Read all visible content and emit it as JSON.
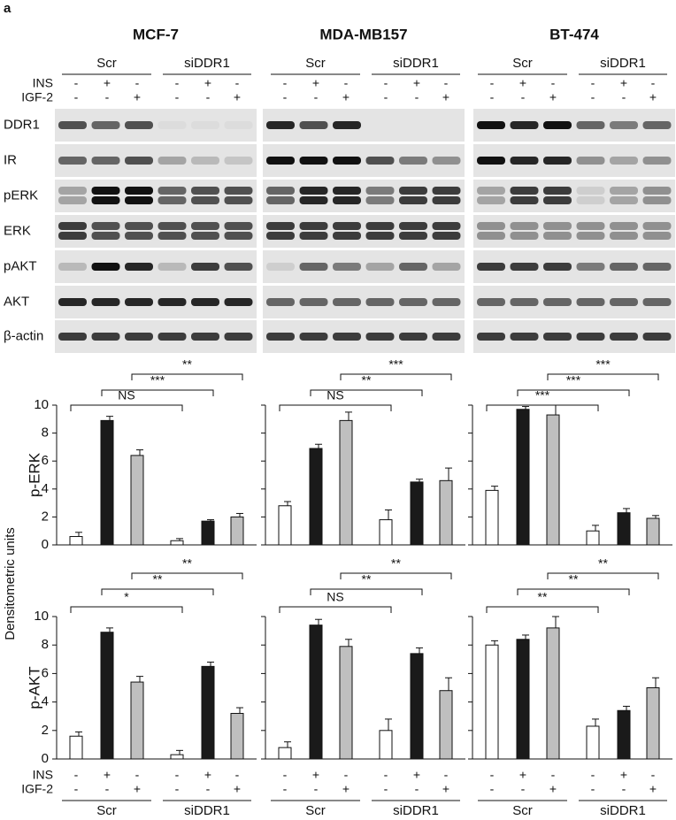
{
  "panel_label": "a",
  "cell_lines": [
    "MCF-7",
    "MDA-MB157",
    "BT-474"
  ],
  "groups": [
    "Scr",
    "siDDR1"
  ],
  "treatments": {
    "labels": [
      "INS",
      "IGF-2"
    ],
    "signs": [
      [
        "-",
        "+",
        "-",
        "-",
        "+",
        "-"
      ],
      [
        "-",
        "-",
        "+",
        "-",
        "-",
        "+"
      ]
    ]
  },
  "blot_labels": [
    "DDR1",
    "IR",
    "pERK",
    "ERK",
    "pAKT",
    "AKT",
    "β-actin"
  ],
  "y_axis_label": "Densitometric units",
  "chart_data": [
    {
      "type": "bar",
      "ylabel": "p-ERK",
      "values": [
        0.6,
        8.9,
        6.4,
        0.3,
        1.7,
        2.0
      ],
      "errors": [
        0.3,
        0.3,
        0.4,
        0.15,
        0.1,
        0.25
      ],
      "colors": [
        "#ffffff",
        "#1a1a1a",
        "#bfbfbf",
        "#ffffff",
        "#1a1a1a",
        "#bfbfbf"
      ],
      "ylim": [
        0,
        10
      ],
      "yticks": [
        0,
        2,
        4,
        6,
        8,
        10
      ],
      "tick_labels": true,
      "significance": [
        "NS",
        "***",
        "**"
      ]
    },
    {
      "type": "bar",
      "values": [
        2.8,
        6.9,
        8.9,
        1.8,
        4.5,
        4.6
      ],
      "errors": [
        0.3,
        0.3,
        0.6,
        0.7,
        0.2,
        0.9
      ],
      "colors": [
        "#ffffff",
        "#1a1a1a",
        "#bfbfbf",
        "#ffffff",
        "#1a1a1a",
        "#bfbfbf"
      ],
      "ylim": [
        0,
        10
      ],
      "yticks": [
        0,
        2,
        4,
        6,
        8,
        10
      ],
      "tick_labels": false,
      "significance": [
        "NS",
        "**",
        "***"
      ]
    },
    {
      "type": "bar",
      "values": [
        3.9,
        9.7,
        9.3,
        1.0,
        2.3,
        1.9
      ],
      "errors": [
        0.3,
        0.2,
        0.7,
        0.4,
        0.3,
        0.2
      ],
      "colors": [
        "#ffffff",
        "#1a1a1a",
        "#bfbfbf",
        "#ffffff",
        "#1a1a1a",
        "#bfbfbf"
      ],
      "ylim": [
        0,
        10
      ],
      "yticks": [
        0,
        2,
        4,
        6,
        8,
        10
      ],
      "tick_labels": false,
      "significance": [
        "***",
        "***",
        "***"
      ]
    },
    {
      "type": "bar",
      "ylabel": "p-AKT",
      "values": [
        1.6,
        8.9,
        5.4,
        0.3,
        6.5,
        3.2
      ],
      "errors": [
        0.3,
        0.3,
        0.4,
        0.3,
        0.3,
        0.4
      ],
      "colors": [
        "#ffffff",
        "#1a1a1a",
        "#bfbfbf",
        "#ffffff",
        "#1a1a1a",
        "#bfbfbf"
      ],
      "ylim": [
        0,
        10
      ],
      "yticks": [
        0,
        2,
        4,
        6,
        8,
        10
      ],
      "tick_labels": true,
      "significance": [
        "*",
        "**",
        "**"
      ]
    },
    {
      "type": "bar",
      "values": [
        0.8,
        9.4,
        7.9,
        2.0,
        7.4,
        4.8
      ],
      "errors": [
        0.4,
        0.4,
        0.5,
        0.8,
        0.4,
        0.9
      ],
      "colors": [
        "#ffffff",
        "#1a1a1a",
        "#bfbfbf",
        "#ffffff",
        "#1a1a1a",
        "#bfbfbf"
      ],
      "ylim": [
        0,
        10
      ],
      "yticks": [
        0,
        2,
        4,
        6,
        8,
        10
      ],
      "tick_labels": false,
      "significance": [
        "NS",
        "**",
        "**"
      ]
    },
    {
      "type": "bar",
      "values": [
        8.0,
        8.4,
        9.2,
        2.3,
        3.4,
        5.0
      ],
      "errors": [
        0.3,
        0.3,
        0.8,
        0.5,
        0.3,
        0.7
      ],
      "colors": [
        "#ffffff",
        "#1a1a1a",
        "#bfbfbf",
        "#ffffff",
        "#1a1a1a",
        "#bfbfbf"
      ],
      "ylim": [
        0,
        10
      ],
      "yticks": [
        0,
        2,
        4,
        6,
        8,
        10
      ],
      "tick_labels": false,
      "significance": [
        "**",
        "**",
        "**"
      ]
    }
  ]
}
